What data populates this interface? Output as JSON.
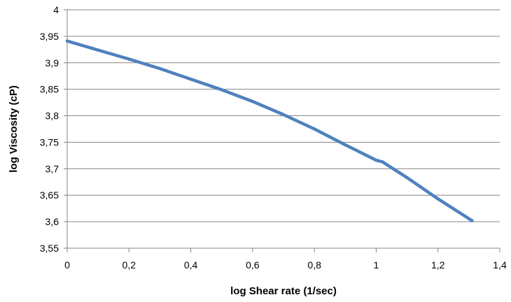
{
  "chart_data": {
    "type": "line",
    "title": "",
    "xlabel": "log  Shear rate (1/sec)",
    "ylabel": "log Viscosity (cP)",
    "xlim": [
      0,
      1.4
    ],
    "ylim": [
      3.55,
      4
    ],
    "x_ticks": [
      "0",
      "0,2",
      "0,4",
      "0,6",
      "0,8",
      "1",
      "1,2",
      "1,4"
    ],
    "y_ticks": [
      "3,55",
      "3,6",
      "3,65",
      "3,7",
      "3,75",
      "3,8",
      "3,85",
      "3,9",
      "3,95",
      "4"
    ],
    "grid": true,
    "legend": "none",
    "series": [
      {
        "color": "#4f81bd",
        "x": [
          0,
          0.1,
          0.2,
          0.3,
          0.4,
          0.5,
          0.6,
          0.7,
          0.8,
          0.9,
          1.0,
          1.02,
          1.1,
          1.2,
          1.31
        ],
        "y": [
          3.941,
          3.924,
          3.907,
          3.889,
          3.869,
          3.849,
          3.827,
          3.802,
          3.775,
          3.745,
          3.716,
          3.713,
          3.683,
          3.643,
          3.602
        ]
      }
    ]
  }
}
